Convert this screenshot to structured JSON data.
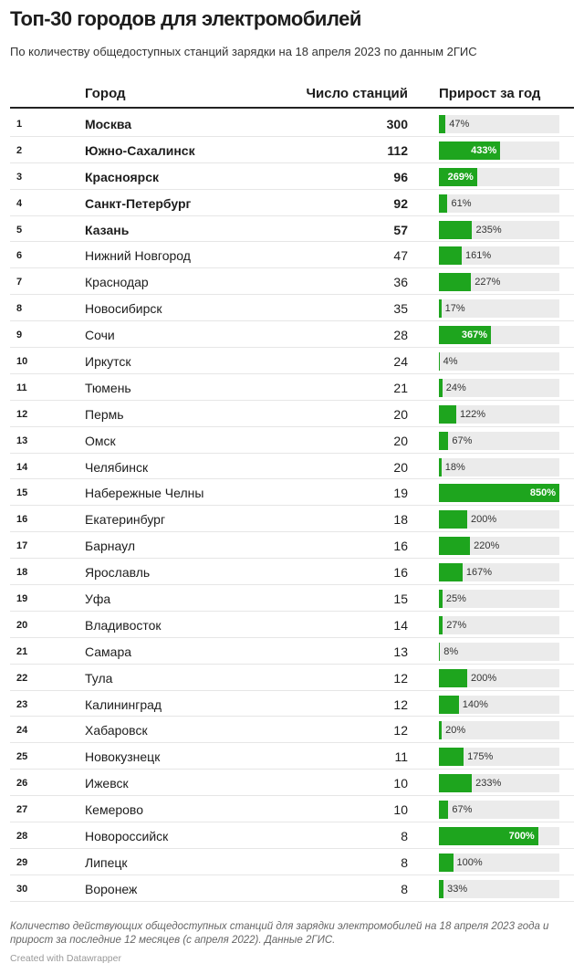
{
  "title": "Топ-30 городов для электромобилей",
  "subtitle": "По количеству общедоступных станций зарядки на 18 апреля 2023 по данным 2ГИС",
  "notes": "Количество действующих общедоступных станций для зарядки электромобилей на 18 апреля 2023 года и прирост за последние 12 месяцев (с апреля 2022). Данные 2ГИС.",
  "credit": "Created with Datawrapper",
  "colors": {
    "bar": "#1ea51e",
    "track": "#ebebeb"
  },
  "chart_data": {
    "type": "table",
    "columns": [
      "",
      "Город",
      "Число станций",
      "Прирост за год"
    ],
    "growth_max": 850,
    "rows": [
      {
        "rank": 1,
        "city": "Москва",
        "stations": 300,
        "growth": 47
      },
      {
        "rank": 2,
        "city": "Южно-Сахалинск",
        "stations": 112,
        "growth": 433
      },
      {
        "rank": 3,
        "city": "Красноярск",
        "stations": 96,
        "growth": 269
      },
      {
        "rank": 4,
        "city": "Санкт-Петербург",
        "stations": 92,
        "growth": 61
      },
      {
        "rank": 5,
        "city": "Казань",
        "stations": 57,
        "growth": 235
      },
      {
        "rank": 6,
        "city": "Нижний Новгород",
        "stations": 47,
        "growth": 161
      },
      {
        "rank": 7,
        "city": "Краснодар",
        "stations": 36,
        "growth": 227
      },
      {
        "rank": 8,
        "city": "Новосибирск",
        "stations": 35,
        "growth": 17
      },
      {
        "rank": 9,
        "city": "Сочи",
        "stations": 28,
        "growth": 367
      },
      {
        "rank": 10,
        "city": "Иркутск",
        "stations": 24,
        "growth": 4
      },
      {
        "rank": 11,
        "city": "Тюмень",
        "stations": 21,
        "growth": 24
      },
      {
        "rank": 12,
        "city": "Пермь",
        "stations": 20,
        "growth": 122
      },
      {
        "rank": 13,
        "city": "Омск",
        "stations": 20,
        "growth": 67
      },
      {
        "rank": 14,
        "city": "Челябинск",
        "stations": 20,
        "growth": 18
      },
      {
        "rank": 15,
        "city": "Набережные Челны",
        "stations": 19,
        "growth": 850
      },
      {
        "rank": 16,
        "city": "Екатеринбург",
        "stations": 18,
        "growth": 200
      },
      {
        "rank": 17,
        "city": "Барнаул",
        "stations": 16,
        "growth": 220
      },
      {
        "rank": 18,
        "city": "Ярославль",
        "stations": 16,
        "growth": 167
      },
      {
        "rank": 19,
        "city": "Уфа",
        "stations": 15,
        "growth": 25
      },
      {
        "rank": 20,
        "city": "Владивосток",
        "stations": 14,
        "growth": 27
      },
      {
        "rank": 21,
        "city": "Самара",
        "stations": 13,
        "growth": 8
      },
      {
        "rank": 22,
        "city": "Тула",
        "stations": 12,
        "growth": 200
      },
      {
        "rank": 23,
        "city": "Калининград",
        "stations": 12,
        "growth": 140
      },
      {
        "rank": 24,
        "city": "Хабаровск",
        "stations": 12,
        "growth": 20
      },
      {
        "rank": 25,
        "city": "Новокузнецк",
        "stations": 11,
        "growth": 175
      },
      {
        "rank": 26,
        "city": "Ижевск",
        "stations": 10,
        "growth": 233
      },
      {
        "rank": 27,
        "city": "Кемерово",
        "stations": 10,
        "growth": 67
      },
      {
        "rank": 28,
        "city": "Новороссийск",
        "stations": 8,
        "growth": 700
      },
      {
        "rank": 29,
        "city": "Липецк",
        "stations": 8,
        "growth": 100
      },
      {
        "rank": 30,
        "city": "Воронеж",
        "stations": 8,
        "growth": 33
      }
    ]
  }
}
